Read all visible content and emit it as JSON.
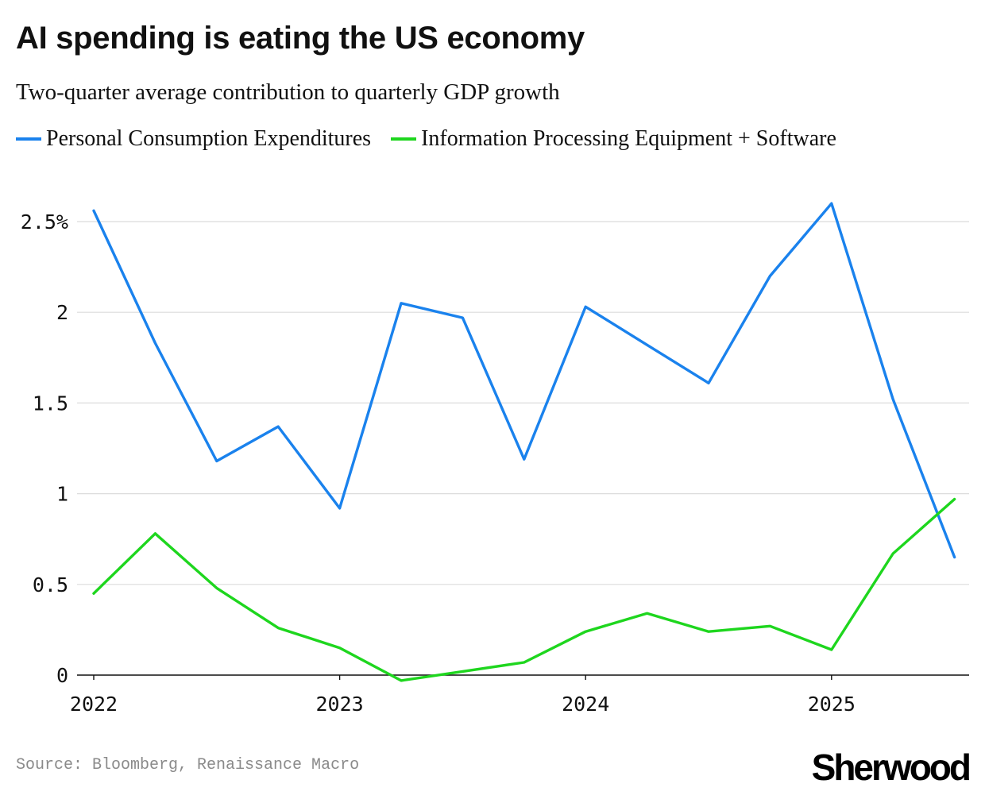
{
  "title": "AI spending is eating the US economy",
  "subtitle": "Two-quarter average contribution to quarterly GDP growth",
  "source": "Source: Bloomberg, Renaissance Macro",
  "brand": "Sherwood",
  "colors": {
    "pce": "#1a82ed",
    "ipe": "#1ed61e",
    "grid": "#dcdcdc",
    "axis": "#111111"
  },
  "chart_data": {
    "type": "line",
    "x": [
      "2022 Q1",
      "2022 Q2",
      "2022 Q3",
      "2022 Q4",
      "2023 Q1",
      "2023 Q2",
      "2023 Q3",
      "2023 Q4",
      "2024 Q1",
      "2024 Q2",
      "2024 Q3",
      "2024 Q4",
      "2025 Q1",
      "2025 Q2",
      "2025 Q3"
    ],
    "x_tick_labels": [
      "2022",
      "2023",
      "2024",
      "2025"
    ],
    "y_tick_labels": [
      "2.5%",
      "2",
      "1.5",
      "1",
      "0.5",
      "0"
    ],
    "y_ticks": [
      2.5,
      2,
      1.5,
      1,
      0.5,
      0
    ],
    "ylim": [
      -0.05,
      2.65
    ],
    "grid": true,
    "legend_position": "top-left",
    "series": [
      {
        "name": "Personal Consumption Expenditures",
        "color": "#1a82ed",
        "values": [
          2.56,
          1.83,
          1.18,
          1.37,
          0.92,
          2.05,
          1.97,
          1.19,
          2.03,
          1.82,
          1.61,
          2.2,
          2.6,
          1.52,
          0.65
        ]
      },
      {
        "name": "Information Processing Equipment + Software",
        "color": "#1ed61e",
        "values": [
          0.45,
          0.78,
          0.48,
          0.26,
          0.15,
          -0.03,
          0.02,
          0.07,
          0.24,
          0.34,
          0.24,
          0.27,
          0.14,
          0.67,
          0.97
        ]
      }
    ]
  }
}
